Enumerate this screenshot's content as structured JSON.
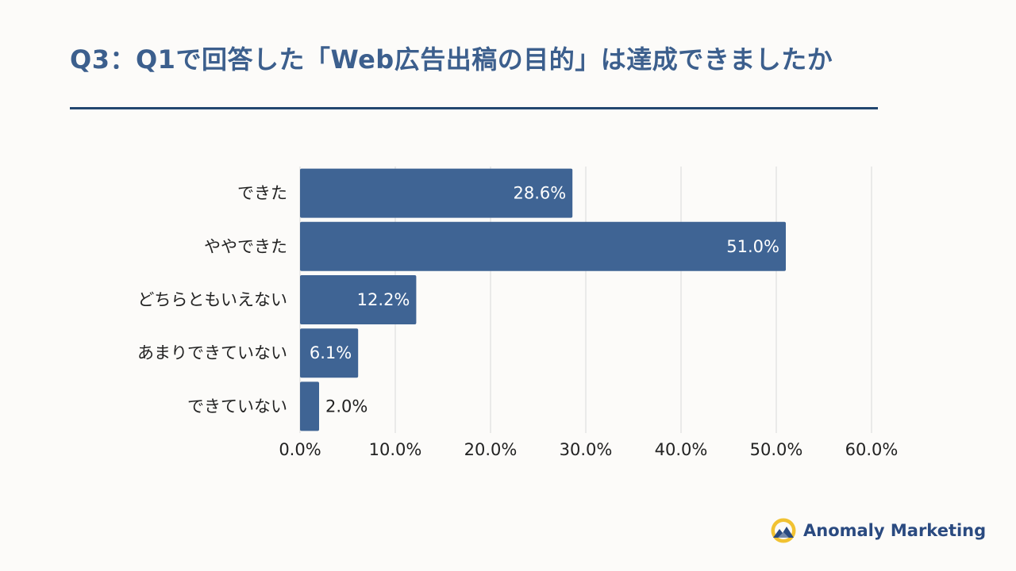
{
  "title": "Q3：Q1で回答した「Web広告出稿の目的」は達成できましたか",
  "brand": {
    "name": "Anomaly Marketing",
    "logo_icon": "mountain-sun-logo-icon"
  },
  "colors": {
    "bar": "#3f6494",
    "title": "#3c5f8d",
    "rule": "#22466f",
    "grid": "#d9d9d9",
    "label_inside": "#ffffff",
    "label_outside": "#222222"
  },
  "chart_data": {
    "type": "bar",
    "orientation": "horizontal",
    "title": "Q3：Q1で回答した「Web広告出稿の目的」は達成できましたか",
    "categories": [
      "できた",
      "ややできた",
      "どちらともいえない",
      "あまりできていない",
      "できていない"
    ],
    "values": [
      28.6,
      51.0,
      12.2,
      6.1,
      2.0
    ],
    "value_labels": [
      "28.6%",
      "51.0%",
      "12.2%",
      "6.1%",
      "2.0%"
    ],
    "xlim": [
      0,
      60
    ],
    "x_ticks": [
      0,
      10,
      20,
      30,
      40,
      50,
      60
    ],
    "x_tick_labels": [
      "0.0%",
      "10.0%",
      "20.0%",
      "30.0%",
      "40.0%",
      "50.0%",
      "60.0%"
    ],
    "xlabel": "",
    "ylabel": "",
    "grid": true,
    "legend": "none"
  }
}
